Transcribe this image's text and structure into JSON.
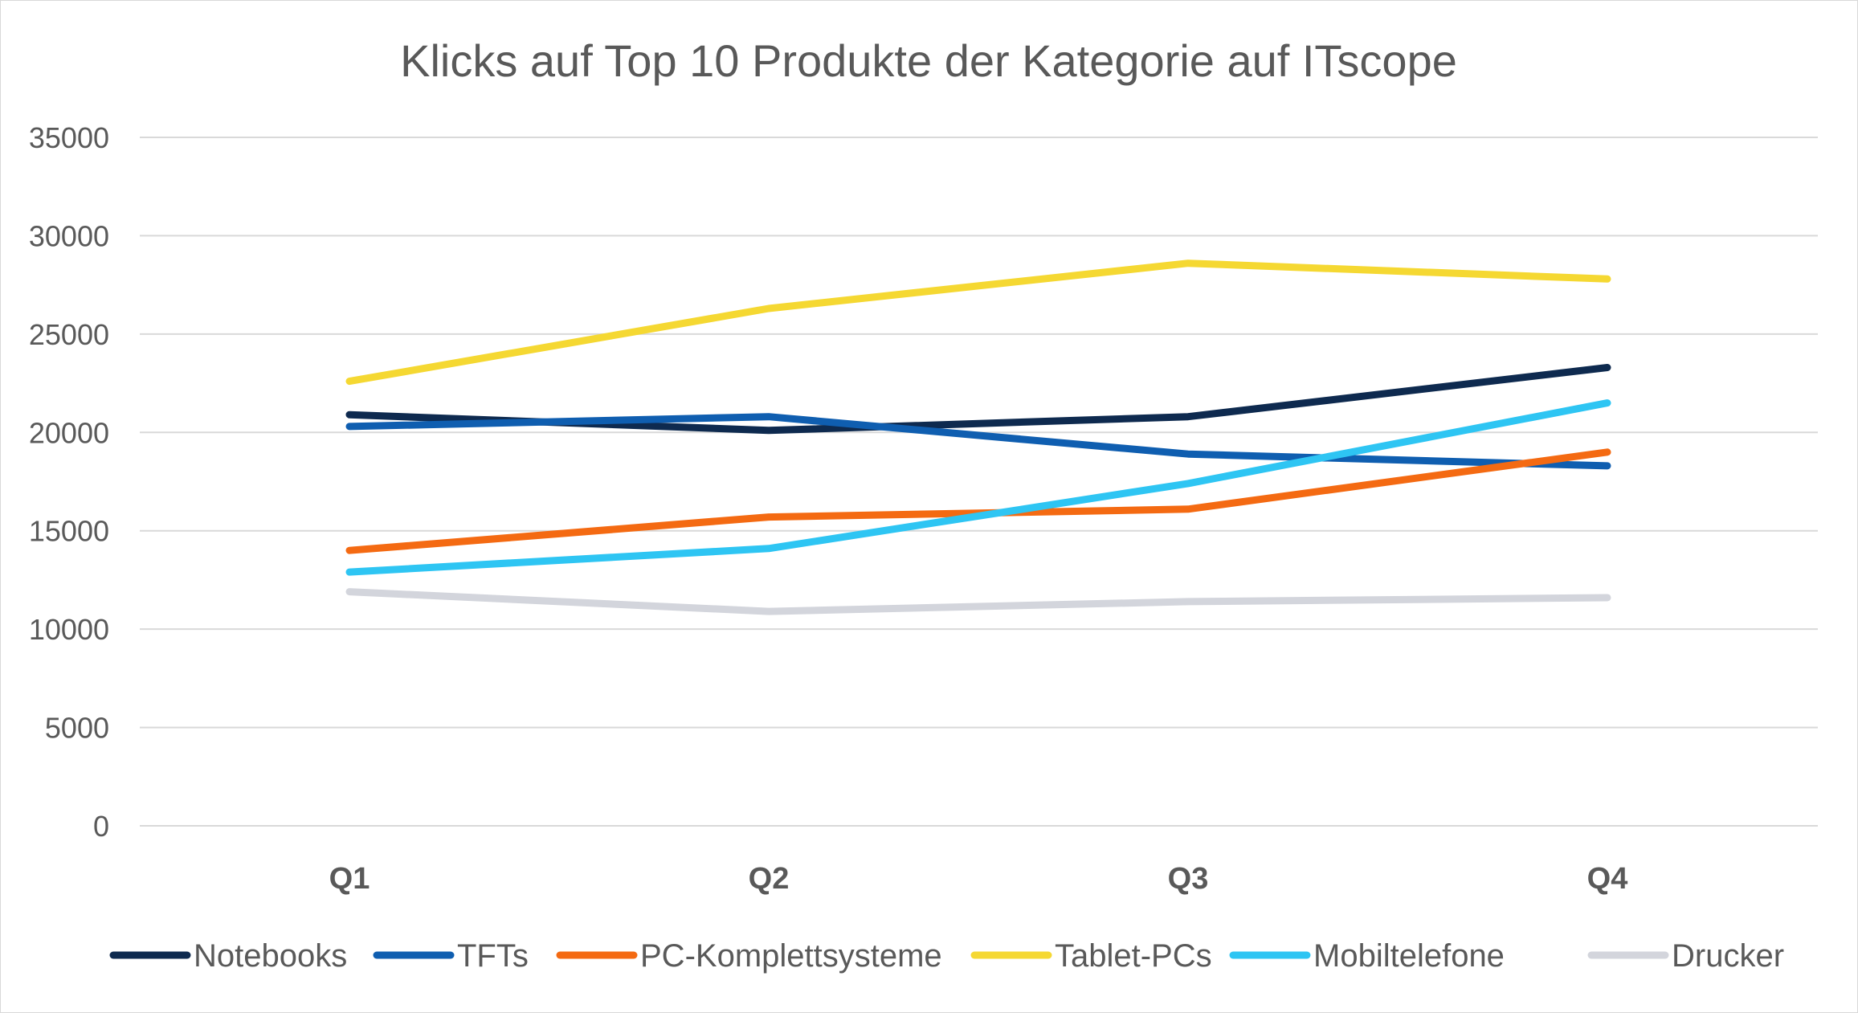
{
  "chart_data": {
    "type": "line",
    "title": "Klicks auf Top 10 Produkte der Kategorie auf ITscope",
    "categories": [
      "Q1",
      "Q2",
      "Q3",
      "Q4"
    ],
    "ylim": [
      0,
      35000
    ],
    "yticks": [
      0,
      5000,
      10000,
      15000,
      20000,
      25000,
      30000,
      35000
    ],
    "ytick_labels": [
      "0",
      "5000",
      "10000",
      "15000",
      "20000",
      "25000",
      "30000",
      "35000"
    ],
    "xlabel": "",
    "ylabel": "",
    "grid": true,
    "legend_position": "bottom",
    "series": [
      {
        "name": "Notebooks",
        "color": "#0e2a4f",
        "values": [
          20900,
          20100,
          20800,
          23300
        ]
      },
      {
        "name": "TFTs",
        "color": "#0f5eb0",
        "values": [
          20300,
          20800,
          18900,
          18300
        ]
      },
      {
        "name": "PC-Komplettsysteme",
        "color": "#f46a12",
        "values": [
          14000,
          15700,
          16100,
          19000
        ]
      },
      {
        "name": "Tablet-PCs",
        "color": "#f5d832",
        "values": [
          22600,
          26300,
          28600,
          27800
        ]
      },
      {
        "name": "Mobiltelefone",
        "color": "#2ec5f3",
        "values": [
          12900,
          14100,
          17400,
          21500
        ]
      },
      {
        "name": "Drucker",
        "color": "#d3d5dc",
        "values": [
          11900,
          10900,
          11400,
          11600
        ]
      }
    ]
  }
}
